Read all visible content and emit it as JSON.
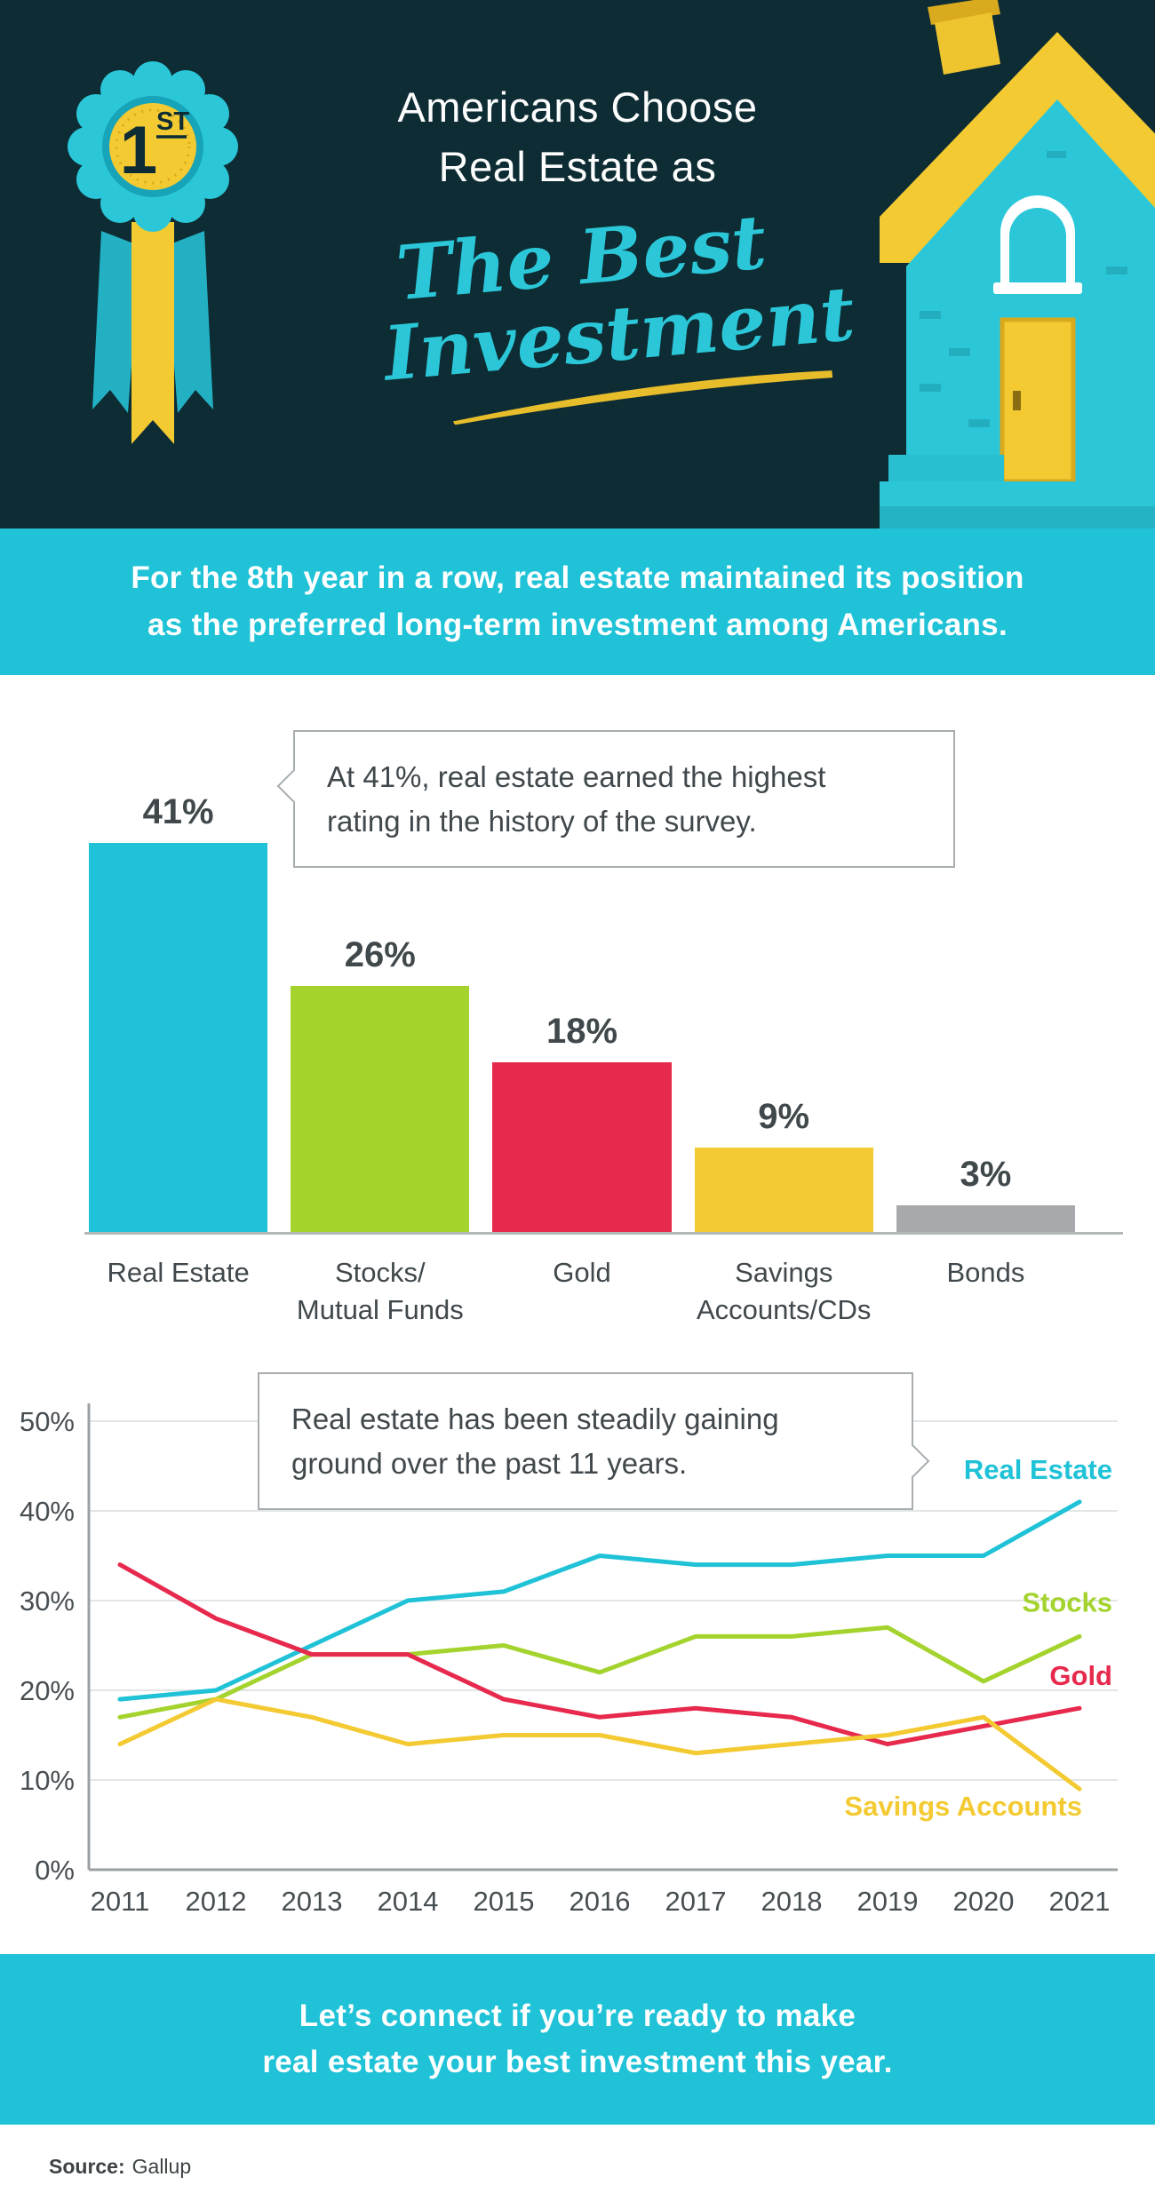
{
  "header": {
    "badge_number": "1",
    "badge_suffix": "ST",
    "title_line1": "Americans Choose",
    "title_line2": "Real Estate as",
    "script_line1": "The Best",
    "script_line2": "Investment"
  },
  "banner_top": {
    "line1": "For the 8th year in a row, real estate maintained its position",
    "line2": "as the preferred long-term investment among Americans."
  },
  "callout_bar": {
    "line1": "At 41%, real estate earned the highest",
    "line2": "rating in the history of the survey."
  },
  "callout_line": {
    "line1": "Real estate has been steadily gaining",
    "line2": "ground over the past 11 years."
  },
  "banner_bottom": {
    "line1": "Let’s connect if you’re ready to make",
    "line2": "real estate your best investment this year."
  },
  "footer": {
    "source_label": "Source:",
    "source_value": "Gallup"
  },
  "colors": {
    "cyan": "#1fc2d6",
    "green": "#a4d32e",
    "red": "#e6294c",
    "gold": "#f3ca32",
    "gray": "#a7a9ac",
    "header_bg": "#0d2c34",
    "text_dark": "#40484c"
  },
  "chart_data": [
    {
      "type": "bar",
      "categories": [
        [
          "Real Estate"
        ],
        [
          "Stocks/",
          "Mutual Funds"
        ],
        [
          "Gold"
        ],
        [
          "Savings",
          "Accounts/CDs"
        ],
        [
          "Bonds"
        ]
      ],
      "values": [
        41,
        26,
        18,
        9,
        3
      ],
      "value_labels": [
        "41%",
        "26%",
        "18%",
        "9%",
        "3%"
      ],
      "bar_colors": [
        "#1fc2d6",
        "#a4d32e",
        "#e6294c",
        "#f3ca32",
        "#a7a9ac"
      ],
      "ylim": [
        0,
        41
      ],
      "grid": false
    },
    {
      "type": "line",
      "x": [
        "2011",
        "2012",
        "2013",
        "2014",
        "2015",
        "2016",
        "2017",
        "2018",
        "2019",
        "2020",
        "2021"
      ],
      "series": [
        {
          "name": "Real Estate",
          "color": "#1fc2d6",
          "values": [
            19,
            20,
            25,
            30,
            31,
            35,
            34,
            34,
            35,
            35,
            41
          ]
        },
        {
          "name": "Stocks",
          "color": "#a4d32e",
          "values": [
            17,
            19,
            24,
            24,
            25,
            22,
            26,
            26,
            27,
            21,
            26
          ]
        },
        {
          "name": "Gold",
          "color": "#e6294c",
          "values": [
            34,
            28,
            24,
            24,
            19,
            17,
            18,
            17,
            14,
            16,
            18
          ]
        },
        {
          "name": "Savings Accounts",
          "color": "#f3ca32",
          "values": [
            14,
            19,
            17,
            14,
            15,
            15,
            13,
            14,
            15,
            17,
            9
          ]
        }
      ],
      "ylim": [
        0,
        50
      ],
      "yticks": [
        "0%",
        "10%",
        "20%",
        "30%",
        "40%",
        "50%"
      ],
      "grid": true,
      "legend_position": "right-inline"
    }
  ]
}
